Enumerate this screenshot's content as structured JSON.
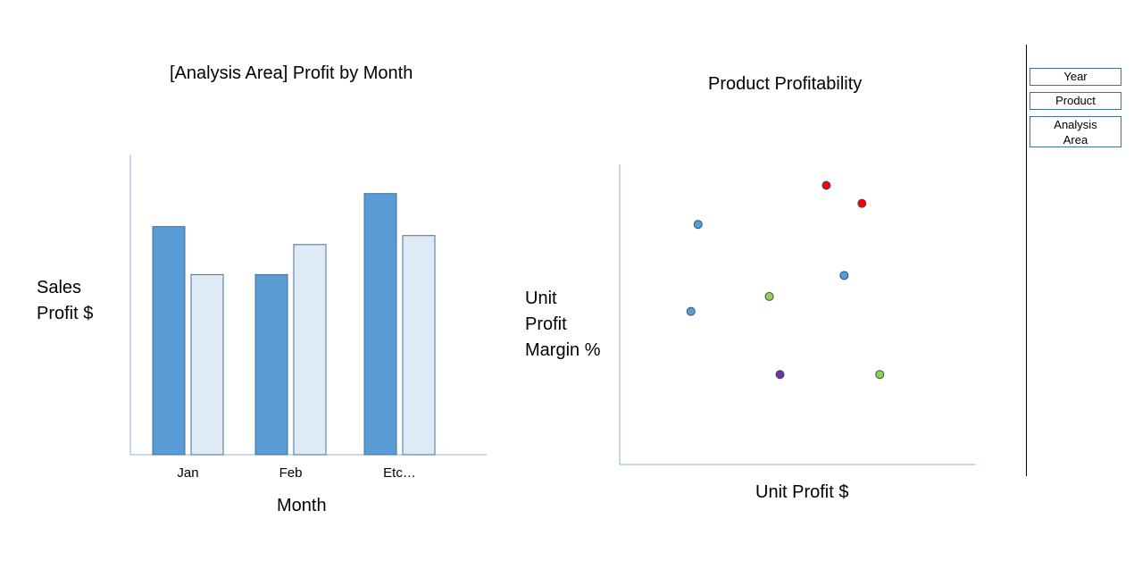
{
  "chart_data": [
    {
      "type": "bar",
      "title": "[Analysis Area] Profit by Month",
      "ylabel": "Sales\nProfit $",
      "xlabel": "Month",
      "categories": [
        "Jan",
        "Feb",
        "Etc…"
      ],
      "series": [
        {
          "values": [
            76,
            60,
            87
          ],
          "color": "#5b9bd5"
        },
        {
          "values": [
            60,
            70,
            73
          ],
          "color": "#deeaf6"
        }
      ],
      "ylim": [
        0,
        100
      ],
      "grid": false
    },
    {
      "type": "scatter",
      "title": "Product Profitability",
      "xlabel": "Unit Profit $",
      "ylabel": "Unit\nProfit\nMargin %",
      "xlim": [
        0,
        100
      ],
      "ylim": [
        0,
        100
      ],
      "grid": false,
      "points": [
        {
          "x": 58,
          "y": 93,
          "color": "#ff0000"
        },
        {
          "x": 68,
          "y": 87,
          "color": "#ff0000"
        },
        {
          "x": 22,
          "y": 80,
          "color": "#5b9bd5"
        },
        {
          "x": 63,
          "y": 63,
          "color": "#5b9bd5"
        },
        {
          "x": 42,
          "y": 56,
          "color": "#92d050"
        },
        {
          "x": 20,
          "y": 51,
          "color": "#5b9bd5"
        },
        {
          "x": 45,
          "y": 30,
          "color": "#7030a0"
        },
        {
          "x": 73,
          "y": 30,
          "color": "#92d050"
        }
      ]
    }
  ],
  "filters": {
    "year": "Year",
    "product": "Product",
    "analysis_area_line1": "Analysis",
    "analysis_area_line2": "Area"
  }
}
